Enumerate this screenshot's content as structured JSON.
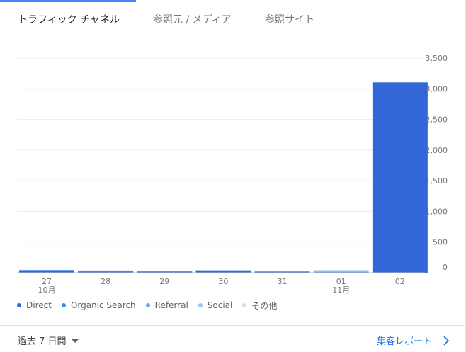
{
  "tabs": [
    {
      "label": "トラフィック チャネル",
      "active": true
    },
    {
      "label": "参照元 / メディア",
      "active": false
    },
    {
      "label": "参照サイト",
      "active": false
    }
  ],
  "chart_data": {
    "type": "bar",
    "stacked": true,
    "categories": [
      "27\n10月",
      "28",
      "29",
      "30",
      "31",
      "01\n11月",
      "02"
    ],
    "yticks": [
      "3,500",
      "3,000",
      "2,500",
      "2,000",
      "1,500",
      "1,000",
      "500",
      "0"
    ],
    "ylim": [
      0,
      3500
    ],
    "grid": true,
    "series": [
      {
        "name": "Direct",
        "color": "#3366d6",
        "values": [
          30,
          20,
          15,
          25,
          12,
          10,
          3100
        ]
      },
      {
        "name": "Organic Search",
        "color": "#4285f4",
        "values": [
          10,
          10,
          8,
          10,
          8,
          5,
          5
        ]
      },
      {
        "name": "Referral",
        "color": "#6aa2f3",
        "values": [
          5,
          5,
          4,
          5,
          3,
          5,
          2
        ]
      },
      {
        "name": "Social",
        "color": "#9cc2f5",
        "values": [
          2,
          2,
          2,
          2,
          2,
          20,
          1
        ]
      },
      {
        "name": "その他",
        "color": "#c9ddf8",
        "values": [
          1,
          1,
          1,
          1,
          1,
          2,
          1
        ]
      }
    ]
  },
  "footer": {
    "date_range": "過去 7 日間",
    "report_link": "集客レポート"
  }
}
